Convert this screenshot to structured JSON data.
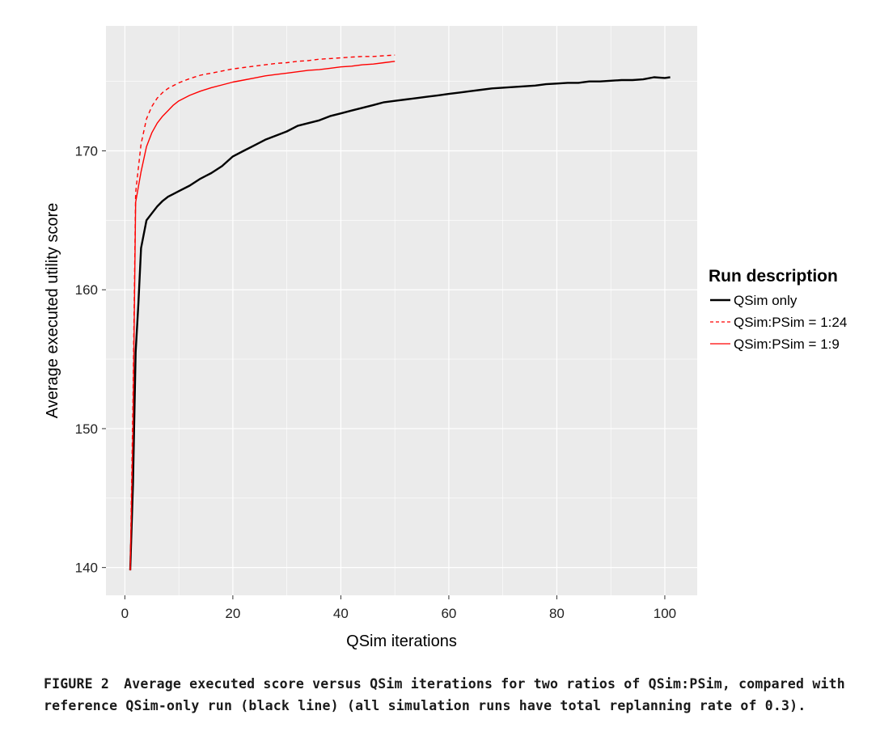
{
  "chart_data": {
    "type": "line",
    "xlabel": "QSim iterations",
    "ylabel": "Average executed utility score",
    "xlim": [
      -3.5,
      106
    ],
    "ylim": [
      138,
      179
    ],
    "x_ticks": [
      0,
      20,
      40,
      60,
      80,
      100
    ],
    "y_ticks": [
      140,
      150,
      160,
      170
    ],
    "grid": true,
    "legend": {
      "title": "Run description",
      "placement": "right"
    },
    "series": [
      {
        "name": "QSim only",
        "color": "#000000",
        "dash": "solid",
        "points": [
          [
            1,
            139.8
          ],
          [
            1.5,
            146
          ],
          [
            2,
            155.5
          ],
          [
            2.5,
            159
          ],
          [
            3,
            163
          ],
          [
            4,
            165
          ],
          [
            5,
            165.5
          ],
          [
            6,
            166
          ],
          [
            7,
            166.4
          ],
          [
            8,
            166.7
          ],
          [
            9,
            166.9
          ],
          [
            10,
            167.1
          ],
          [
            12,
            167.5
          ],
          [
            14,
            168
          ],
          [
            16,
            168.4
          ],
          [
            18,
            168.9
          ],
          [
            20,
            169.6
          ],
          [
            22,
            170
          ],
          [
            24,
            170.4
          ],
          [
            26,
            170.8
          ],
          [
            28,
            171.1
          ],
          [
            30,
            171.4
          ],
          [
            32,
            171.8
          ],
          [
            34,
            172
          ],
          [
            36,
            172.2
          ],
          [
            38,
            172.5
          ],
          [
            40,
            172.7
          ],
          [
            42,
            172.9
          ],
          [
            44,
            173.1
          ],
          [
            46,
            173.3
          ],
          [
            48,
            173.5
          ],
          [
            50,
            173.6
          ],
          [
            52,
            173.7
          ],
          [
            54,
            173.8
          ],
          [
            56,
            173.9
          ],
          [
            58,
            174
          ],
          [
            60,
            174.1
          ],
          [
            62,
            174.2
          ],
          [
            64,
            174.3
          ],
          [
            66,
            174.4
          ],
          [
            68,
            174.5
          ],
          [
            70,
            174.55
          ],
          [
            72,
            174.6
          ],
          [
            74,
            174.65
          ],
          [
            76,
            174.7
          ],
          [
            78,
            174.8
          ],
          [
            80,
            174.85
          ],
          [
            82,
            174.9
          ],
          [
            84,
            174.9
          ],
          [
            86,
            175
          ],
          [
            88,
            175
          ],
          [
            90,
            175.05
          ],
          [
            92,
            175.1
          ],
          [
            94,
            175.1
          ],
          [
            96,
            175.15
          ],
          [
            98,
            175.3
          ],
          [
            100,
            175.25
          ],
          [
            101,
            175.3
          ]
        ]
      },
      {
        "name": "QSim:PSim = 1:24",
        "color": "#ff0000",
        "dash": "dashed",
        "points": [
          [
            1,
            139.8
          ],
          [
            1.5,
            152
          ],
          [
            2,
            167
          ],
          [
            3,
            170.5
          ],
          [
            4,
            172.3
          ],
          [
            5,
            173.2
          ],
          [
            6,
            173.8
          ],
          [
            7,
            174.2
          ],
          [
            8,
            174.5
          ],
          [
            10,
            174.9
          ],
          [
            12,
            175.2
          ],
          [
            14,
            175.45
          ],
          [
            16,
            175.6
          ],
          [
            18,
            175.75
          ],
          [
            20,
            175.9
          ],
          [
            22,
            176
          ],
          [
            24,
            176.1
          ],
          [
            26,
            176.2
          ],
          [
            28,
            176.3
          ],
          [
            30,
            176.35
          ],
          [
            32,
            176.45
          ],
          [
            34,
            176.5
          ],
          [
            36,
            176.6
          ],
          [
            38,
            176.65
          ],
          [
            40,
            176.7
          ],
          [
            42,
            176.75
          ],
          [
            44,
            176.8
          ],
          [
            46,
            176.8
          ],
          [
            48,
            176.85
          ],
          [
            50,
            176.9
          ]
        ]
      },
      {
        "name": "QSim:PSim = 1:9",
        "color": "#ff0000",
        "dash": "solid",
        "points": [
          [
            1,
            139.8
          ],
          [
            1.5,
            150
          ],
          [
            2,
            166.3
          ],
          [
            3,
            168.5
          ],
          [
            4,
            170.3
          ],
          [
            5,
            171.3
          ],
          [
            6,
            172
          ],
          [
            7,
            172.5
          ],
          [
            8,
            172.9
          ],
          [
            9,
            173.3
          ],
          [
            10,
            173.6
          ],
          [
            12,
            174
          ],
          [
            14,
            174.3
          ],
          [
            16,
            174.55
          ],
          [
            18,
            174.75
          ],
          [
            20,
            174.95
          ],
          [
            22,
            175.1
          ],
          [
            24,
            175.25
          ],
          [
            26,
            175.4
          ],
          [
            28,
            175.5
          ],
          [
            30,
            175.6
          ],
          [
            32,
            175.7
          ],
          [
            34,
            175.8
          ],
          [
            36,
            175.85
          ],
          [
            38,
            175.95
          ],
          [
            40,
            176.05
          ],
          [
            42,
            176.1
          ],
          [
            44,
            176.2
          ],
          [
            46,
            176.25
          ],
          [
            48,
            176.35
          ],
          [
            50,
            176.45
          ]
        ]
      }
    ]
  },
  "caption": {
    "label": "FIGURE 2",
    "text": "Average executed score versus QSim iterations for two ratios of QSim:PSim, compared with reference QSim-only run (black line) (all simulation runs have total replanning rate of 0.3)."
  },
  "colors": {
    "panel_background": "#ebebeb",
    "gridline": "#ffffff"
  }
}
